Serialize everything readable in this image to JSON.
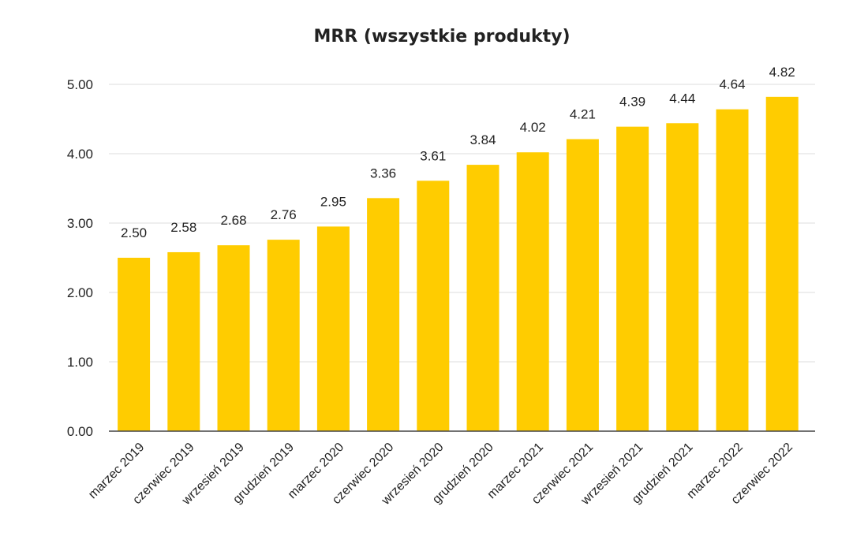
{
  "chart_data": {
    "type": "bar",
    "title": "MRR (wszystkie produkty)",
    "xlabel": "",
    "ylabel": "",
    "categories": [
      "marzec 2019",
      "czerwiec 2019",
      "wrzesień 2019",
      "grudzień 2019",
      "marzec 2020",
      "czerwiec 2020",
      "wrzesień 2020",
      "grudzień 2020",
      "marzec 2021",
      "czerwiec 2021",
      "wrzesień 2021",
      "grudzień 2021",
      "marzec 2022",
      "czerwiec 2022"
    ],
    "values": [
      2.5,
      2.58,
      2.68,
      2.76,
      2.95,
      3.36,
      3.61,
      3.84,
      4.02,
      4.21,
      4.39,
      4.44,
      4.64,
      4.82
    ],
    "value_labels": [
      "2.50",
      "2.58",
      "2.68",
      "2.76",
      "2.95",
      "3.36",
      "3.61",
      "3.84",
      "4.02",
      "4.21",
      "4.39",
      "4.44",
      "4.64",
      "4.82"
    ],
    "ylim": [
      0,
      5
    ],
    "yticks": [
      0,
      1,
      2,
      3,
      4,
      5
    ],
    "ytick_labels": [
      "0.00",
      "1.00",
      "2.00",
      "3.00",
      "4.00",
      "5.00"
    ],
    "grid": true,
    "legend": "none",
    "colors": {
      "bar": "#FFCC00",
      "grid": "#DDDDDD",
      "axis": "#444444",
      "text": "#222222"
    }
  }
}
